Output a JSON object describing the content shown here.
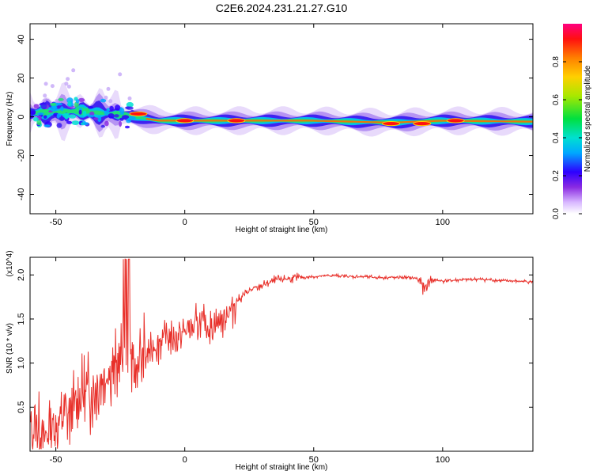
{
  "title": "C2E6.2024.231.21.27.G10",
  "chart_data": [
    {
      "type": "heatmap",
      "name": "spectrogram",
      "xlabel": "Height of straight line (km)",
      "ylabel": "Frequency (Hz)",
      "xlim": [
        -60,
        135
      ],
      "ylim": [
        -50,
        48
      ],
      "xticks": [
        -50,
        0,
        50,
        100
      ],
      "yticks": [
        -40,
        -20,
        0,
        20,
        40
      ],
      "colorbar": {
        "label": "Normalized spectral amplitude",
        "range": [
          0,
          1
        ],
        "ticks": [
          0.0,
          0.2,
          0.4,
          0.6,
          0.8
        ]
      },
      "ridge": [
        {
          "x": -60,
          "y": 2
        },
        {
          "x": -40,
          "y": 3
        },
        {
          "x": -25,
          "y": 1
        },
        {
          "x": -10,
          "y": -2
        },
        {
          "x": 0,
          "y": -2
        },
        {
          "x": 50,
          "y": -2
        },
        {
          "x": 80,
          "y": -3
        },
        {
          "x": 100,
          "y": -2
        },
        {
          "x": 135,
          "y": -2.5
        }
      ],
      "hotspots": [
        {
          "x": -18,
          "y": 1.5
        },
        {
          "x": 0,
          "y": -2
        },
        {
          "x": 20,
          "y": -2
        },
        {
          "x": 80,
          "y": -3.5
        },
        {
          "x": 92,
          "y": -3.5
        },
        {
          "x": 105,
          "y": -2
        }
      ]
    },
    {
      "type": "line",
      "name": "snr",
      "xlabel": "Height of straight line (km)",
      "ylabel": "SNR (10 * v/v)",
      "y_multiplier": "(x10^4)",
      "xlim": [
        -60,
        135
      ],
      "ylim": [
        0,
        2.2
      ],
      "xticks": [
        -50,
        0,
        50,
        100
      ],
      "yticks": [
        0.5,
        1.0,
        1.5,
        2.0
      ],
      "series": [
        {
          "color": "#e8302a",
          "x": [
            -60,
            -55,
            -50,
            -45,
            -40,
            -35,
            -30,
            -25,
            -22,
            -20,
            -15,
            -10,
            -5,
            0,
            5,
            10,
            15,
            20,
            25,
            30,
            35,
            40,
            45,
            50,
            55,
            60,
            65,
            70,
            75,
            80,
            85,
            90,
            93,
            95,
            100,
            105,
            110,
            115,
            120,
            125,
            130,
            135
          ],
          "y": [
            0.25,
            0.15,
            0.3,
            0.45,
            0.6,
            0.75,
            0.9,
            1.0,
            1.3,
            0.9,
            1.1,
            1.25,
            1.3,
            1.35,
            1.45,
            1.4,
            1.5,
            1.7,
            1.82,
            1.88,
            1.94,
            1.96,
            1.97,
            1.98,
            1.99,
            1.99,
            1.98,
            1.98,
            1.97,
            1.97,
            1.97,
            1.96,
            1.85,
            1.95,
            1.93,
            1.94,
            1.95,
            1.95,
            1.94,
            1.93,
            1.93,
            1.92
          ]
        }
      ]
    }
  ]
}
